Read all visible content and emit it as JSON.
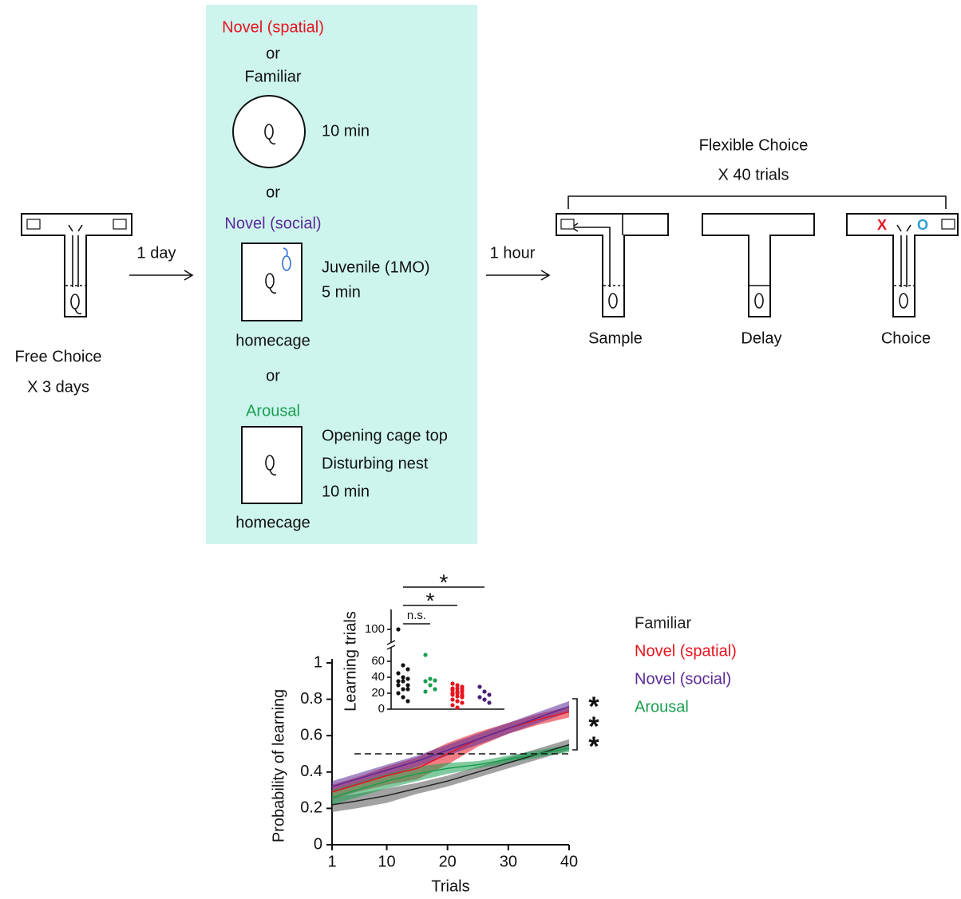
{
  "diagram": {
    "free_choice": {
      "title": "Free Choice",
      "repeat": "X 3 days"
    },
    "delay_1": "1 day",
    "conditions": {
      "novel_spatial": "Novel (spatial)",
      "or_1": "or",
      "familiar": "Familiar",
      "arena_time": "10 min",
      "or_2": "or",
      "novel_social": "Novel (social)",
      "social_stimulus": "Juvenile (1MO)",
      "social_time": "5 min",
      "social_cage": "homecage",
      "or_3": "or",
      "arousal": "Arousal",
      "arousal_steps": [
        "Opening cage top",
        "Disturbing nest",
        "10 min"
      ],
      "arousal_cage": "homecage"
    },
    "delay_2": "1 hour",
    "flexible_choice": {
      "title": "Flexible Choice",
      "repeat": "X 40 trials",
      "phases": [
        "Sample",
        "Delay",
        "Choice"
      ],
      "wrong_mark": "X",
      "right_mark": "O"
    }
  },
  "chart_data": [
    {
      "type": "line",
      "xlabel": "Trials",
      "ylabel": "Probability of learning",
      "x": [
        1,
        5,
        10,
        15,
        20,
        25,
        30,
        35,
        40
      ],
      "xlim": [
        1,
        40
      ],
      "xticks": [
        1,
        10,
        20,
        30,
        40
      ],
      "ylim": [
        0,
        1
      ],
      "yticks": [
        0,
        0.2,
        0.4,
        0.6,
        0.8,
        1
      ],
      "hline": 0.5,
      "significance": [
        "*",
        "*",
        "*"
      ],
      "series": [
        {
          "name": "Familiar",
          "color": "#222222",
          "band_color": "#555555",
          "values": [
            0.22,
            0.24,
            0.27,
            0.31,
            0.35,
            0.4,
            0.45,
            0.5,
            0.55
          ],
          "lower": [
            0.18,
            0.2,
            0.23,
            0.28,
            0.32,
            0.37,
            0.42,
            0.47,
            0.52
          ],
          "upper": [
            0.26,
            0.28,
            0.31,
            0.34,
            0.38,
            0.43,
            0.48,
            0.53,
            0.58
          ]
        },
        {
          "name": "Novel (spatial)",
          "color": "#e8141e",
          "band_color": "#e8141e",
          "values": [
            0.29,
            0.33,
            0.38,
            0.42,
            0.5,
            0.58,
            0.64,
            0.69,
            0.73
          ],
          "lower": [
            0.25,
            0.29,
            0.33,
            0.36,
            0.44,
            0.54,
            0.61,
            0.66,
            0.7
          ],
          "upper": [
            0.33,
            0.37,
            0.43,
            0.48,
            0.56,
            0.62,
            0.67,
            0.72,
            0.76
          ]
        },
        {
          "name": "Novel (social)",
          "color": "#5b2a96",
          "band_color": "#5b2a96",
          "values": [
            0.32,
            0.36,
            0.41,
            0.46,
            0.52,
            0.58,
            0.64,
            0.7,
            0.76
          ],
          "lower": [
            0.29,
            0.33,
            0.38,
            0.43,
            0.49,
            0.55,
            0.61,
            0.67,
            0.73
          ],
          "upper": [
            0.35,
            0.39,
            0.44,
            0.49,
            0.55,
            0.61,
            0.67,
            0.73,
            0.79
          ]
        },
        {
          "name": "Arousal",
          "color": "#1a9e50",
          "band_color": "#1a9e50",
          "values": [
            0.26,
            0.3,
            0.35,
            0.39,
            0.42,
            0.44,
            0.47,
            0.5,
            0.53
          ],
          "lower": [
            0.22,
            0.26,
            0.31,
            0.35,
            0.39,
            0.42,
            0.45,
            0.48,
            0.51
          ],
          "upper": [
            0.3,
            0.34,
            0.39,
            0.43,
            0.45,
            0.46,
            0.49,
            0.52,
            0.55
          ]
        }
      ]
    },
    {
      "type": "strip",
      "ylabel": "Learning trials",
      "ylim": [
        0,
        100
      ],
      "yticks": [
        0,
        20,
        40,
        60,
        100
      ],
      "series": [
        {
          "name": "Familiar",
          "color": "#111111",
          "values": [
            100,
            55,
            50,
            45,
            40,
            38,
            35,
            35,
            30,
            30,
            25,
            25,
            20,
            15,
            10
          ]
        },
        {
          "name": "Arousal",
          "color": "#1a9e50",
          "values": [
            68,
            38,
            36,
            35,
            30,
            25,
            22
          ]
        },
        {
          "name": "Novel (spatial)",
          "color": "#e8141e",
          "values": [
            32,
            30,
            28,
            26,
            26,
            25,
            24,
            22,
            22,
            20,
            20,
            18,
            18,
            16,
            15,
            12,
            10,
            8,
            5,
            2
          ]
        },
        {
          "name": "Novel (social)",
          "color": "#4a1f7a",
          "values": [
            28,
            22,
            18,
            15,
            12,
            8
          ]
        }
      ],
      "comparisons": [
        {
          "from": "Familiar",
          "to": "Arousal",
          "label": "n.s."
        },
        {
          "from": "Familiar",
          "to": "Novel (spatial)",
          "label": "*"
        },
        {
          "from": "Familiar",
          "to": "Novel (social)",
          "label": "*"
        }
      ]
    }
  ]
}
